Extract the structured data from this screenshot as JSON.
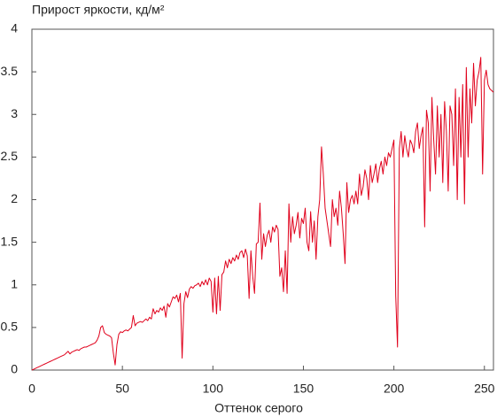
{
  "chart_data": {
    "type": "line",
    "title": "Прирост яркости, кд/м²",
    "x_label": "Оттенок серого",
    "x": [
      0,
      1,
      2,
      3,
      4,
      5,
      6,
      7,
      8,
      9,
      10,
      11,
      12,
      13,
      14,
      15,
      16,
      17,
      18,
      19,
      20,
      21,
      22,
      23,
      24,
      25,
      26,
      27,
      28,
      29,
      30,
      31,
      32,
      33,
      34,
      35,
      36,
      37,
      38,
      39,
      40,
      41,
      42,
      43,
      44,
      45,
      46,
      47,
      48,
      49,
      50,
      51,
      52,
      53,
      54,
      55,
      56,
      57,
      58,
      59,
      60,
      61,
      62,
      63,
      64,
      65,
      66,
      67,
      68,
      69,
      70,
      71,
      72,
      73,
      74,
      75,
      76,
      77,
      78,
      79,
      80,
      81,
      82,
      83,
      84,
      85,
      86,
      87,
      88,
      89,
      90,
      91,
      92,
      93,
      94,
      95,
      96,
      97,
      98,
      99,
      100,
      101,
      102,
      103,
      104,
      105,
      106,
      107,
      108,
      109,
      110,
      111,
      112,
      113,
      114,
      115,
      116,
      117,
      118,
      119,
      120,
      121,
      122,
      123,
      124,
      125,
      126,
      127,
      128,
      129,
      130,
      131,
      132,
      133,
      134,
      135,
      136,
      137,
      138,
      139,
      140,
      141,
      142,
      143,
      144,
      145,
      146,
      147,
      148,
      149,
      150,
      151,
      152,
      153,
      154,
      155,
      156,
      157,
      158,
      159,
      160,
      161,
      162,
      163,
      164,
      165,
      166,
      167,
      168,
      169,
      170,
      171,
      172,
      173,
      174,
      175,
      176,
      177,
      178,
      179,
      180,
      181,
      182,
      183,
      184,
      185,
      186,
      187,
      188,
      189,
      190,
      191,
      192,
      193,
      194,
      195,
      196,
      197,
      198,
      199,
      200,
      201,
      202,
      203,
      204,
      205,
      206,
      207,
      208,
      209,
      210,
      211,
      212,
      213,
      214,
      215,
      216,
      217,
      218,
      219,
      220,
      221,
      222,
      223,
      224,
      225,
      226,
      227,
      228,
      229,
      230,
      231,
      232,
      233,
      234,
      235,
      236,
      237,
      238,
      239,
      240,
      241,
      242,
      243,
      244,
      245,
      246,
      247,
      248,
      249,
      250,
      251,
      252,
      253,
      254,
      255
    ],
    "series": [
      {
        "color": "#e0001b",
        "values": [
          0,
          0.01,
          0.02,
          0.03,
          0.04,
          0.05,
          0.06,
          0.07,
          0.08,
          0.09,
          0.1,
          0.11,
          0.12,
          0.13,
          0.14,
          0.15,
          0.16,
          0.17,
          0.18,
          0.2,
          0.22,
          0.19,
          0.21,
          0.22,
          0.23,
          0.24,
          0.23,
          0.25,
          0.26,
          0.27,
          0.27,
          0.28,
          0.29,
          0.3,
          0.31,
          0.32,
          0.35,
          0.4,
          0.5,
          0.52,
          0.44,
          0.42,
          0.41,
          0.4,
          0.38,
          0.2,
          0.06,
          0.3,
          0.42,
          0.45,
          0.44,
          0.46,
          0.47,
          0.46,
          0.48,
          0.5,
          0.64,
          0.52,
          0.55,
          0.56,
          0.57,
          0.56,
          0.58,
          0.6,
          0.58,
          0.62,
          0.6,
          0.72,
          0.66,
          0.7,
          0.68,
          0.73,
          0.7,
          0.75,
          0.62,
          0.78,
          0.74,
          0.8,
          0.86,
          0.84,
          0.88,
          0.8,
          0.9,
          0.14,
          0.78,
          0.92,
          0.85,
          0.95,
          0.98,
          0.96,
          0.99,
          1.0,
          1.02,
          0.98,
          1.04,
          1.0,
          1.06,
          1.0,
          1.08,
          1.04,
          0.68,
          1.08,
          0.66,
          1.1,
          0.7,
          1.12,
          1.15,
          1.28,
          1.2,
          1.3,
          1.25,
          1.32,
          1.28,
          1.35,
          1.3,
          1.38,
          1.4,
          1.32,
          1.42,
          1.34,
          0.84,
          1.4,
          1.1,
          0.9,
          1.48,
          1.5,
          1.96,
          1.3,
          1.6,
          1.45,
          1.58,
          1.64,
          1.5,
          1.68,
          1.62,
          1.7,
          1.65,
          1.1,
          1.2,
          0.92,
          1.4,
          0.9,
          1.95,
          1.5,
          1.8,
          1.6,
          1.7,
          1.85,
          1.55,
          1.78,
          1.72,
          1.9,
          1.5,
          1.4,
          1.86,
          1.5,
          1.75,
          1.3,
          1.8,
          2.0,
          2.62,
          2.3,
          1.9,
          1.75,
          1.6,
          1.45,
          2.0,
          1.8,
          1.9,
          1.7,
          2.1,
          1.9,
          1.6,
          1.25,
          2.2,
          1.85,
          2.0,
          2.05,
          1.95,
          2.1,
          1.95,
          2.3,
          2.05,
          2.15,
          2.35,
          2.25,
          2.0,
          2.4,
          2.2,
          2.3,
          2.42,
          2.2,
          2.36,
          2.45,
          2.3,
          2.5,
          2.4,
          2.55,
          2.5,
          2.6,
          2.7,
          0.87,
          0.27,
          2.6,
          2.8,
          2.5,
          2.75,
          2.6,
          2.5,
          2.7,
          2.65,
          2.55,
          2.8,
          2.9,
          2.6,
          2.75,
          2.85,
          1.68,
          3.05,
          2.9,
          2.1,
          3.2,
          2.7,
          2.3,
          3.1,
          2.5,
          3.0,
          2.2,
          3.15,
          2.8,
          2.1,
          3.1,
          3.0,
          2.4,
          3.3,
          2.0,
          3.2,
          2.5,
          3.35,
          1.95,
          3.55,
          2.5,
          3.3,
          2.9,
          3.6,
          3.1,
          3.4,
          3.5,
          3.67,
          2.3,
          3.4,
          3.52,
          3.35,
          3.3,
          3.28,
          3.26
        ]
      }
    ],
    "xlim": [
      0,
      255
    ],
    "xticks": [
      0,
      50,
      100,
      150,
      200,
      250
    ],
    "ylim": [
      0,
      4
    ],
    "yticks": [
      0,
      0.5,
      1,
      1.5,
      2,
      2.5,
      3,
      3.5,
      4
    ],
    "grid": false
  }
}
